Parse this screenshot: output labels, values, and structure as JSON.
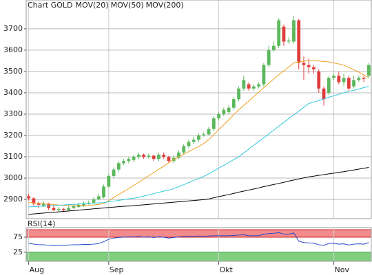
{
  "chart_data": [
    {
      "type": "candlestick",
      "title": "Chart GOLD",
      "title_color": "#e0302f",
      "categories": [
        "Aug",
        null,
        null,
        null,
        null,
        null,
        null,
        null,
        null,
        null,
        null,
        null,
        null,
        null,
        null,
        null,
        "Sep",
        null,
        null,
        null,
        null,
        null,
        null,
        null,
        null,
        null,
        null,
        null,
        null,
        null,
        null,
        null,
        null,
        null,
        null,
        null,
        null,
        null,
        "Okt",
        null,
        null,
        null,
        null,
        null,
        null,
        null,
        null,
        null,
        null,
        null,
        null,
        null,
        null,
        null,
        null,
        null,
        null,
        null,
        null,
        null,
        null,
        "Nov",
        null,
        null,
        null,
        null,
        null,
        null,
        null
      ],
      "open": [
        2915,
        2905,
        2880,
        2870,
        2880,
        2860,
        2850,
        2855,
        2850,
        2860,
        2865,
        2870,
        2880,
        2885,
        2900,
        2910,
        2960,
        3010,
        3040,
        3070,
        3080,
        3085,
        3100,
        3110,
        3100,
        3105,
        3090,
        3110,
        3100,
        3080,
        3095,
        3120,
        3150,
        3170,
        3180,
        3200,
        3205,
        3230,
        3280,
        3300,
        3310,
        3330,
        3370,
        3420,
        3440,
        3420,
        3430,
        3440,
        3530,
        3600,
        3620,
        3710,
        3640,
        3640,
        3740,
        3540,
        3530,
        3520,
        3500,
        3420,
        3400,
        3470,
        3480,
        3450,
        3470,
        3430,
        3460,
        3470,
        3480
      ],
      "high": [
        2925,
        2910,
        2890,
        2890,
        2885,
        2870,
        2865,
        2860,
        2870,
        2880,
        2885,
        2890,
        2895,
        2910,
        2925,
        2970,
        3020,
        3050,
        3080,
        3090,
        3100,
        3110,
        3120,
        3115,
        3115,
        3110,
        3120,
        3120,
        3105,
        3105,
        3130,
        3160,
        3180,
        3195,
        3210,
        3215,
        3240,
        3290,
        3310,
        3330,
        3340,
        3380,
        3430,
        3480,
        3450,
        3440,
        3450,
        3540,
        3620,
        3640,
        3750,
        3720,
        3660,
        3760,
        3745,
        3570,
        3560,
        3530,
        3510,
        3430,
        3480,
        3490,
        3500,
        3490,
        3480,
        3480,
        3480,
        3480,
        3540
      ],
      "low": [
        2895,
        2870,
        2860,
        2865,
        2850,
        2845,
        2840,
        2845,
        2845,
        2855,
        2860,
        2865,
        2875,
        2880,
        2895,
        2905,
        2955,
        3000,
        3030,
        3060,
        3070,
        3075,
        3090,
        3090,
        3090,
        3080,
        3080,
        3090,
        3070,
        3070,
        3090,
        3110,
        3140,
        3160,
        3170,
        3195,
        3200,
        3220,
        3270,
        3290,
        3300,
        3320,
        3360,
        3410,
        3410,
        3410,
        3420,
        3430,
        3520,
        3590,
        3610,
        3620,
        3630,
        3630,
        3510,
        3460,
        3490,
        3490,
        3400,
        3340,
        3390,
        3460,
        3440,
        3430,
        3410,
        3420,
        3450,
        3450,
        3470
      ],
      "close": [
        2905,
        2880,
        2875,
        2880,
        2860,
        2850,
        2855,
        2850,
        2860,
        2870,
        2875,
        2880,
        2885,
        2900,
        2915,
        2960,
        3010,
        3040,
        3070,
        3080,
        3090,
        3100,
        3110,
        3100,
        3105,
        3090,
        3110,
        3100,
        3080,
        3095,
        3120,
        3150,
        3170,
        3180,
        3200,
        3205,
        3230,
        3280,
        3300,
        3320,
        3330,
        3370,
        3420,
        3460,
        3420,
        3430,
        3440,
        3530,
        3600,
        3620,
        3740,
        3640,
        3645,
        3740,
        3540,
        3530,
        3520,
        3510,
        3420,
        3370,
        3470,
        3480,
        3450,
        3470,
        3420,
        3460,
        3470,
        3465,
        3530
      ],
      "up_color": "#5cb85c",
      "down_color": "#e03c3c",
      "series": [
        {
          "name": "MOV(20)",
          "color": "#f0a020",
          "values": [
            2885,
            2884,
            2882,
            2880,
            2878,
            2876,
            2874,
            2872,
            2871,
            2870,
            2870,
            2871,
            2872,
            2874,
            2877,
            2880,
            2894,
            2909,
            2923,
            2937,
            2951,
            2966,
            2980,
            2995,
            3011,
            3026,
            3041,
            3056,
            3072,
            3087,
            3099,
            3112,
            3124,
            3137,
            3149,
            3162,
            3180,
            3203,
            3227,
            3250,
            3273,
            3297,
            3320,
            3341,
            3361,
            3382,
            3403,
            3424,
            3444,
            3465,
            3484,
            3503,
            3521,
            3540,
            3545,
            3548,
            3550,
            3550,
            3549,
            3547,
            3545,
            3540,
            3535,
            3530,
            3519,
            3508,
            3497,
            3484,
            3470
          ]
        },
        {
          "name": "MOV(50)",
          "color": "#30c8e0",
          "values": [
            2865,
            2866,
            2868,
            2869,
            2870,
            2872,
            2873,
            2874,
            2876,
            2877,
            2878,
            2880,
            2881,
            2882,
            2884,
            2885,
            2889,
            2892,
            2896,
            2899,
            2903,
            2906,
            2910,
            2916,
            2921,
            2927,
            2933,
            2939,
            2944,
            2950,
            2960,
            2969,
            2979,
            2989,
            2998,
            3008,
            3020,
            3033,
            3047,
            3060,
            3073,
            3087,
            3100,
            3118,
            3136,
            3154,
            3172,
            3189,
            3207,
            3225,
            3243,
            3261,
            3279,
            3296,
            3314,
            3332,
            3350,
            3357,
            3364,
            3371,
            3379,
            3386,
            3393,
            3400,
            3406,
            3412,
            3418,
            3424,
            3430
          ]
        },
        {
          "name": "MOV(200)",
          "color": "#000000",
          "values": [
            2830,
            2832,
            2834,
            2836,
            2838,
            2840,
            2842,
            2844,
            2846,
            2848,
            2850,
            2852,
            2854,
            2856,
            2858,
            2860,
            2862,
            2864,
            2866,
            2868,
            2869,
            2871,
            2873,
            2875,
            2877,
            2879,
            2881,
            2883,
            2885,
            2887,
            2889,
            2891,
            2893,
            2895,
            2897,
            2899,
            2902,
            2908,
            2913,
            2918,
            2923,
            2928,
            2934,
            2939,
            2944,
            2949,
            2954,
            2960,
            2965,
            2970,
            2975,
            2980,
            2986,
            2991,
            2996,
            3001,
            3006,
            3009,
            3013,
            3016,
            3020,
            3023,
            3027,
            3030,
            3034,
            3038,
            3042,
            3046,
            3050
          ]
        }
      ],
      "ylim": [
        2810,
        3835
      ],
      "yticks": [
        2900,
        3000,
        3100,
        3200,
        3300,
        3400,
        3500,
        3600,
        3700
      ],
      "grid": true
    },
    {
      "type": "line",
      "title": "RSI(14)",
      "series": [
        {
          "color": "#2244cc",
          "values": [
            55,
            52,
            50,
            50,
            48,
            47,
            48,
            48,
            49,
            50,
            50,
            51,
            51,
            52,
            54,
            60,
            68,
            72,
            74,
            75,
            76,
            76,
            77,
            75,
            76,
            74,
            76,
            75,
            72,
            74,
            76,
            78,
            78,
            78,
            79,
            78,
            79,
            80,
            80,
            80,
            80,
            81,
            82,
            83,
            80,
            80,
            80,
            85,
            87,
            88,
            90,
            85,
            85,
            89,
            62,
            57,
            56,
            55,
            50,
            48,
            54,
            55,
            52,
            53,
            49,
            52,
            53,
            52,
            57
          ]
        }
      ],
      "ylim": [
        -5,
        107
      ],
      "yticks": [
        25,
        75
      ],
      "bands": [
        {
          "from": 75,
          "to": 100,
          "color": "#f28b8b",
          "edge": "#d02020"
        },
        {
          "from": -5,
          "to": 25,
          "color": "#80d080",
          "edge": "#40a040"
        }
      ]
    }
  ]
}
